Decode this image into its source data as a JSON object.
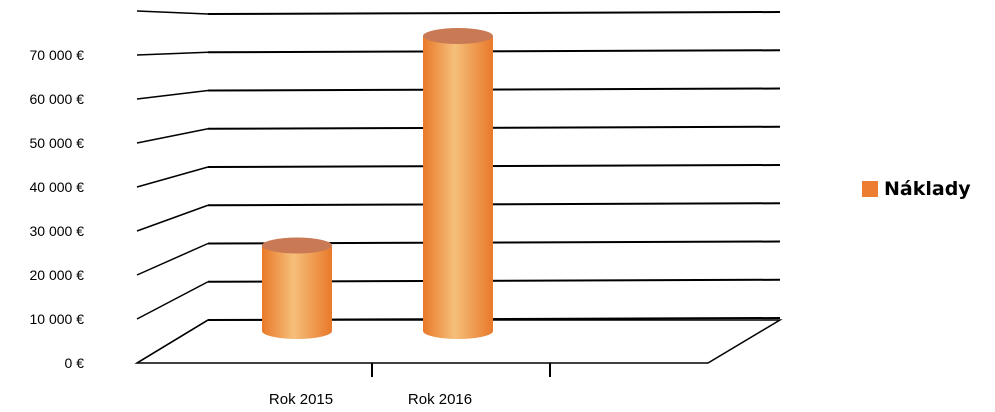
{
  "chart_data": {
    "type": "bar",
    "style": "3d-cylinder",
    "categories": [
      "Rok 2015",
      "Rok 2016"
    ],
    "series": [
      {
        "name": "Náklady",
        "values": [
          20000,
          69000
        ]
      }
    ],
    "y_ticks": [
      "0 €",
      "10 000 €",
      "20 000 €",
      "30 000 €",
      "40 000 €",
      "50 000 €",
      "60 000 €",
      "70 000 €"
    ],
    "y_tick_values": [
      0,
      10000,
      20000,
      30000,
      40000,
      50000,
      60000,
      70000
    ],
    "ylim": [
      0,
      80000
    ],
    "grid": true,
    "legend_position": "right",
    "colors": {
      "bar": "#ED7D31",
      "bar_light": "#F4B871",
      "bar_top": "#C97A55",
      "grid": "#000000"
    }
  }
}
